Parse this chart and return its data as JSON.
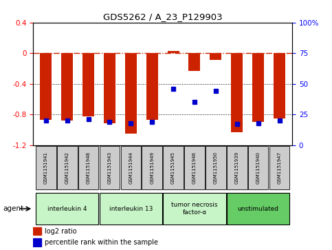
{
  "title": "GDS5262 / A_23_P129903",
  "samples": [
    "GSM1151941",
    "GSM1151942",
    "GSM1151948",
    "GSM1151943",
    "GSM1151944",
    "GSM1151949",
    "GSM1151945",
    "GSM1151946",
    "GSM1151950",
    "GSM1151939",
    "GSM1151940",
    "GSM1151947"
  ],
  "log2_ratio": [
    -0.87,
    -0.88,
    -0.83,
    -0.92,
    -1.05,
    -0.87,
    0.03,
    -0.23,
    -0.09,
    -1.03,
    -0.9,
    -0.85
  ],
  "percentile": [
    20,
    20,
    21,
    19,
    18,
    19,
    46,
    35,
    44,
    17,
    18,
    20
  ],
  "agents": [
    {
      "label": "interleukin 4",
      "start": 0,
      "end": 3,
      "color": "#c8f5c8"
    },
    {
      "label": "interleukin 13",
      "start": 3,
      "end": 6,
      "color": "#c8f5c8"
    },
    {
      "label": "tumor necrosis\nfactor-α",
      "start": 6,
      "end": 9,
      "color": "#c8f5c8"
    },
    {
      "label": "unstimulated",
      "start": 9,
      "end": 12,
      "color": "#66cc66"
    }
  ],
  "ylim_left": [
    -1.2,
    0.4
  ],
  "ylim_right": [
    0,
    100
  ],
  "bar_color": "#cc2200",
  "dot_color": "#0000cc",
  "hline_color": "#cc2200",
  "grid_color": "#000000",
  "bg_color": "#ffffff",
  "sample_box_color": "#cccccc"
}
